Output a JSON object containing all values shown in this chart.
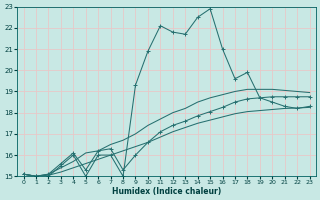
{
  "xlabel": "Humidex (Indice chaleur)",
  "bg_color": "#c8e8e4",
  "grid_color": "#e8c8c8",
  "line_color": "#267070",
  "xlim": [
    -0.5,
    23.5
  ],
  "ylim": [
    15,
    23
  ],
  "xticks": [
    0,
    1,
    2,
    3,
    4,
    5,
    6,
    7,
    8,
    9,
    10,
    11,
    12,
    13,
    14,
    15,
    16,
    17,
    18,
    19,
    20,
    21,
    22,
    23
  ],
  "yticks": [
    15,
    16,
    17,
    18,
    19,
    20,
    21,
    22,
    23
  ],
  "series1_x": [
    0,
    1,
    2,
    3,
    4,
    5,
    6,
    7,
    8,
    9,
    10,
    11,
    12,
    13,
    14,
    15,
    16,
    17,
    18,
    19,
    20,
    21,
    22,
    23
  ],
  "series1_y": [
    15.1,
    15.0,
    15.0,
    15.5,
    16.0,
    15.0,
    16.0,
    16.0,
    15.0,
    19.3,
    20.9,
    22.1,
    21.8,
    21.7,
    22.5,
    22.9,
    21.0,
    19.6,
    19.9,
    18.7,
    18.5,
    18.3,
    18.2,
    18.3
  ],
  "series2_x": [
    0,
    1,
    2,
    3,
    4,
    5,
    6,
    7,
    8,
    9,
    10,
    11,
    12,
    13,
    14,
    15,
    16,
    17,
    18,
    19,
    20,
    21,
    22,
    23
  ],
  "series2_y": [
    15.1,
    15.0,
    15.1,
    15.4,
    15.7,
    16.1,
    16.2,
    16.5,
    16.7,
    17.0,
    17.4,
    17.7,
    18.0,
    18.2,
    18.5,
    18.7,
    18.85,
    19.0,
    19.1,
    19.1,
    19.1,
    19.05,
    19.0,
    18.95
  ],
  "series3_x": [
    0,
    1,
    2,
    3,
    4,
    5,
    6,
    7,
    8,
    9,
    10,
    11,
    12,
    13,
    14,
    15,
    16,
    17,
    18,
    19,
    20,
    21,
    22,
    23
  ],
  "series3_y": [
    15.1,
    15.0,
    15.05,
    15.2,
    15.4,
    15.6,
    15.8,
    16.0,
    16.2,
    16.4,
    16.6,
    16.85,
    17.1,
    17.3,
    17.5,
    17.65,
    17.8,
    17.95,
    18.05,
    18.1,
    18.15,
    18.2,
    18.22,
    18.25
  ],
  "series4_x": [
    0,
    1,
    2,
    3,
    4,
    5,
    6,
    7,
    8,
    9,
    10,
    11,
    12,
    13,
    14,
    15,
    16,
    17,
    18,
    19,
    20,
    21,
    22,
    23
  ],
  "series4_y": [
    15.1,
    15.0,
    15.1,
    15.6,
    16.1,
    15.3,
    16.2,
    16.3,
    15.3,
    16.0,
    16.6,
    17.1,
    17.4,
    17.6,
    17.85,
    18.05,
    18.25,
    18.5,
    18.65,
    18.7,
    18.75,
    18.75,
    18.75,
    18.75
  ]
}
